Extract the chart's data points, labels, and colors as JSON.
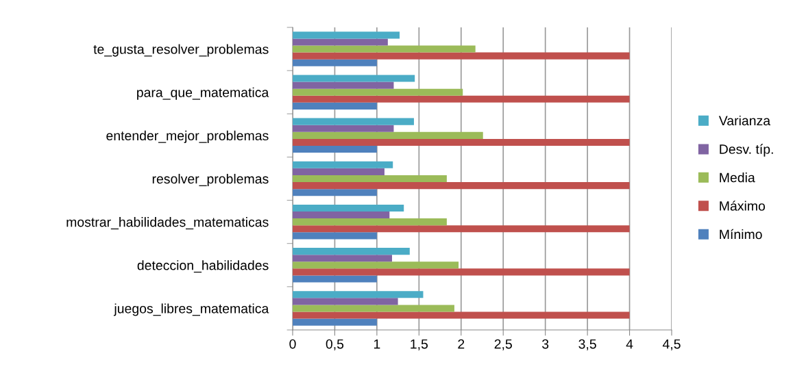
{
  "chart_data": {
    "type": "bar",
    "orientation": "horizontal",
    "categories": [
      "te_gusta_resolver_problemas",
      "para_que_matematica",
      "entender_mejor_problemas",
      "resolver_problemas",
      "mostrar_habilidades_matematicas",
      "deteccion_habilidades",
      "juegos_libres_matematica"
    ],
    "series": [
      {
        "name": "Mínimo",
        "color": "#4f81bd",
        "values": [
          1,
          1,
          1,
          1,
          1,
          1,
          1
        ]
      },
      {
        "name": "Máximo",
        "color": "#c0504d",
        "values": [
          4,
          4,
          4,
          4,
          4,
          4,
          4
        ]
      },
      {
        "name": "Media",
        "color": "#9bbb59",
        "values": [
          2.17,
          2.02,
          2.26,
          1.83,
          1.83,
          1.97,
          1.92
        ]
      },
      {
        "name": "Desv. típ.",
        "color": "#8064a2",
        "values": [
          1.13,
          1.2,
          1.2,
          1.09,
          1.15,
          1.18,
          1.25
        ]
      },
      {
        "name": "Varianza",
        "color": "#4bacc6",
        "values": [
          1.27,
          1.45,
          1.44,
          1.19,
          1.32,
          1.39,
          1.55
        ]
      }
    ],
    "xlim": [
      0,
      4.5
    ],
    "xticks": [
      0,
      {
        "value": 0.5,
        "label": "0,5"
      },
      1,
      {
        "value": 1.5,
        "label": "1,5"
      },
      2,
      {
        "value": 2.5,
        "label": "2,5"
      },
      3,
      {
        "value": 3.5,
        "label": "3,5"
      },
      4,
      {
        "value": 4.5,
        "label": "4,5"
      }
    ],
    "grid": "x",
    "legend": "right"
  }
}
